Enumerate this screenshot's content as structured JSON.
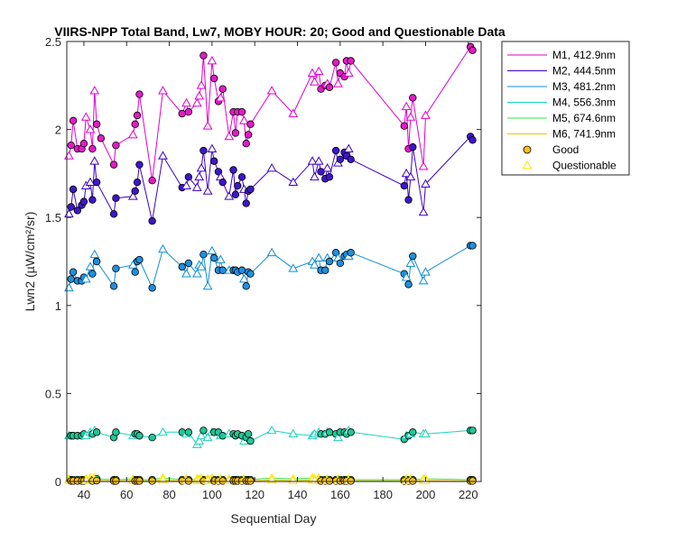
{
  "chart_data": {
    "type": "scatter",
    "title": "VIIRS-NPP Total Band, Lw7, MOBY HOUR: 20;  Good and Questionable Data",
    "xlabel": "Sequential Day",
    "ylabel": "Lwn2 (µW/cm²/sr)",
    "xlim": [
      32,
      226
    ],
    "ylim": [
      0,
      2.5
    ],
    "xticks": [
      40,
      60,
      80,
      100,
      120,
      140,
      160,
      180,
      200,
      220
    ],
    "yticks": [
      0,
      0.5,
      1,
      1.5,
      2,
      2.5
    ],
    "ytick_labels": [
      "0",
      "0.5",
      "1",
      "1.5",
      "2",
      "2.5"
    ],
    "grid": false,
    "legend_position": "outside-top-right",
    "marker_legend": [
      {
        "label": "Good",
        "marker": "circle",
        "fill": "#FFC20E",
        "edge": "#000000"
      },
      {
        "label": "Questionable",
        "marker": "triangle",
        "fill": "none",
        "edge": "#FFE600"
      }
    ],
    "series": [
      {
        "name": "M1, 412.9nm",
        "color": "#E000D0",
        "fill": "#E619C8",
        "x": [
          33,
          34,
          35,
          37,
          39,
          40,
          41,
          43,
          44,
          45,
          46,
          48,
          54,
          55,
          63,
          64,
          65,
          66,
          72,
          77,
          86,
          88,
          89,
          93,
          94,
          95,
          96,
          98,
          100,
          101,
          103,
          104,
          105,
          108,
          110,
          111,
          112,
          114,
          115,
          116,
          117,
          118,
          128,
          138,
          147,
          148,
          150,
          151,
          153,
          154,
          155,
          158,
          159,
          160,
          162,
          163,
          164,
          165,
          190,
          191,
          192,
          193,
          194,
          199,
          200,
          221,
          222
        ],
        "y": [
          1.85,
          1.91,
          2.05,
          1.89,
          1.89,
          1.92,
          2.07,
          2.0,
          1.89,
          2.22,
          2.03,
          1.95,
          1.8,
          1.91,
          1.97,
          2.03,
          2.08,
          2.2,
          1.71,
          2.22,
          2.09,
          2.15,
          2.1,
          2.15,
          2.19,
          2.25,
          2.42,
          2.02,
          2.39,
          2.29,
          2.16,
          2.18,
          2.23,
          1.96,
          2.1,
          1.98,
          2.1,
          2.1,
          2.05,
          1.92,
          1.97,
          2.03,
          2.22,
          2.09,
          2.32,
          2.27,
          2.33,
          2.23,
          2.25,
          2.26,
          2.24,
          2.38,
          2.26,
          2.32,
          2.3,
          2.39,
          2.32,
          2.39,
          2.02,
          2.13,
          1.89,
          2.07,
          2.18,
          1.79,
          2.08,
          2.47,
          2.45
        ],
        "q": [
          1,
          0,
          0,
          0,
          0,
          0,
          1,
          1,
          0,
          1,
          0,
          0,
          0,
          0,
          1,
          0,
          0,
          0,
          0,
          1,
          0,
          1,
          0,
          1,
          1,
          1,
          0,
          1,
          1,
          0,
          0,
          1,
          0,
          1,
          0,
          0,
          0,
          0,
          1,
          0,
          0,
          0,
          1,
          1,
          1,
          1,
          1,
          0,
          0,
          1,
          0,
          0,
          1,
          0,
          0,
          0,
          1,
          0,
          0,
          1,
          0,
          1,
          0,
          1,
          1,
          0,
          0
        ]
      },
      {
        "name": "M2, 444.5nm",
        "color": "#3D00C8",
        "fill": "#3E16CC",
        "x": [
          33,
          34,
          35,
          37,
          39,
          40,
          41,
          43,
          44,
          45,
          46,
          54,
          55,
          63,
          64,
          65,
          66,
          72,
          77,
          86,
          88,
          89,
          93,
          94,
          95,
          96,
          98,
          100,
          101,
          103,
          104,
          105,
          108,
          110,
          111,
          112,
          114,
          115,
          116,
          117,
          118,
          128,
          138,
          147,
          148,
          150,
          151,
          153,
          154,
          155,
          158,
          159,
          160,
          162,
          163,
          164,
          165,
          190,
          191,
          192,
          193,
          194,
          199,
          200,
          221,
          222
        ],
        "y": [
          1.52,
          1.56,
          1.66,
          1.54,
          1.57,
          1.59,
          1.68,
          1.7,
          1.6,
          1.82,
          1.7,
          1.52,
          1.61,
          1.62,
          1.65,
          1.7,
          1.8,
          1.48,
          1.85,
          1.67,
          1.68,
          1.73,
          1.67,
          1.73,
          1.78,
          1.88,
          1.65,
          1.89,
          1.82,
          1.76,
          1.73,
          1.7,
          1.62,
          1.77,
          1.63,
          1.68,
          1.73,
          1.66,
          1.58,
          1.65,
          1.66,
          1.78,
          1.7,
          1.82,
          1.73,
          1.82,
          1.76,
          1.72,
          1.78,
          1.73,
          1.88,
          1.81,
          1.83,
          1.87,
          1.85,
          1.89,
          1.83,
          1.68,
          1.75,
          1.6,
          1.73,
          1.9,
          1.53,
          1.69,
          1.96,
          1.94
        ],
        "q": [
          1,
          0,
          0,
          0,
          0,
          0,
          1,
          1,
          0,
          1,
          0,
          0,
          0,
          1,
          0,
          0,
          0,
          0,
          1,
          0,
          1,
          0,
          1,
          1,
          1,
          0,
          1,
          1,
          0,
          0,
          1,
          0,
          1,
          0,
          0,
          0,
          0,
          1,
          0,
          0,
          0,
          1,
          1,
          1,
          1,
          1,
          0,
          0,
          1,
          0,
          0,
          1,
          0,
          0,
          0,
          1,
          0,
          0,
          1,
          0,
          1,
          0,
          1,
          1,
          0,
          0
        ]
      },
      {
        "name": "M3, 481.2nm",
        "color": "#0F8FD6",
        "fill": "#1E90E0",
        "x": [
          33,
          34,
          35,
          37,
          39,
          40,
          41,
          43,
          44,
          45,
          46,
          54,
          55,
          63,
          64,
          65,
          66,
          72,
          77,
          86,
          88,
          89,
          93,
          94,
          95,
          96,
          98,
          100,
          101,
          103,
          104,
          105,
          108,
          110,
          111,
          112,
          114,
          115,
          116,
          117,
          118,
          128,
          138,
          147,
          148,
          150,
          151,
          153,
          154,
          155,
          158,
          159,
          160,
          162,
          163,
          164,
          165,
          190,
          191,
          192,
          193,
          194,
          199,
          200,
          221,
          222
        ],
        "y": [
          1.1,
          1.15,
          1.19,
          1.14,
          1.14,
          1.16,
          1.15,
          1.22,
          1.18,
          1.29,
          1.25,
          1.11,
          1.21,
          1.23,
          1.19,
          1.25,
          1.26,
          1.1,
          1.32,
          1.22,
          1.18,
          1.24,
          1.18,
          1.23,
          1.22,
          1.29,
          1.11,
          1.31,
          1.27,
          1.2,
          1.26,
          1.2,
          1.2,
          1.2,
          1.2,
          1.19,
          1.2,
          1.15,
          1.11,
          1.19,
          1.18,
          1.3,
          1.21,
          1.25,
          1.23,
          1.27,
          1.2,
          1.2,
          1.27,
          1.25,
          1.3,
          1.27,
          1.24,
          1.28,
          1.29,
          1.28,
          1.3,
          1.18,
          1.16,
          1.12,
          1.24,
          1.28,
          1.14,
          1.19,
          1.34,
          1.34
        ],
        "q": [
          1,
          0,
          0,
          0,
          0,
          0,
          1,
          1,
          0,
          1,
          0,
          0,
          0,
          1,
          0,
          0,
          0,
          0,
          1,
          0,
          1,
          0,
          1,
          1,
          1,
          0,
          1,
          1,
          0,
          0,
          1,
          0,
          1,
          0,
          0,
          0,
          0,
          1,
          0,
          0,
          0,
          1,
          1,
          1,
          1,
          1,
          0,
          0,
          1,
          0,
          0,
          1,
          0,
          0,
          0,
          1,
          0,
          0,
          1,
          0,
          1,
          0,
          1,
          1,
          0,
          0
        ]
      },
      {
        "name": "M4, 556.3nm",
        "color": "#19D2BE",
        "fill": "#1EC896",
        "x": [
          33,
          34,
          35,
          37,
          39,
          40,
          41,
          43,
          44,
          45,
          46,
          54,
          55,
          63,
          64,
          65,
          66,
          72,
          77,
          86,
          88,
          89,
          93,
          94,
          95,
          96,
          98,
          100,
          101,
          103,
          104,
          105,
          108,
          110,
          111,
          112,
          114,
          115,
          116,
          117,
          118,
          128,
          138,
          147,
          148,
          150,
          151,
          153,
          154,
          155,
          158,
          159,
          160,
          162,
          163,
          164,
          165,
          190,
          191,
          192,
          193,
          194,
          199,
          200,
          221,
          222
        ],
        "y": [
          0.26,
          0.26,
          0.26,
          0.26,
          0.26,
          0.27,
          0.26,
          0.28,
          0.27,
          0.29,
          0.28,
          0.25,
          0.28,
          0.26,
          0.27,
          0.27,
          0.26,
          0.25,
          0.28,
          0.28,
          0.27,
          0.28,
          0.21,
          0.23,
          0.26,
          0.29,
          0.25,
          0.28,
          0.28,
          0.28,
          0.26,
          0.26,
          0.27,
          0.27,
          0.26,
          0.27,
          0.26,
          0.23,
          0.25,
          0.27,
          0.23,
          0.29,
          0.27,
          0.26,
          0.27,
          0.28,
          0.27,
          0.27,
          0.28,
          0.28,
          0.27,
          0.25,
          0.28,
          0.28,
          0.27,
          0.29,
          0.28,
          0.24,
          0.26,
          0.26,
          0.27,
          0.28,
          0.27,
          0.27,
          0.29,
          0.29
        ],
        "q": [
          1,
          0,
          0,
          0,
          0,
          0,
          1,
          1,
          0,
          1,
          0,
          0,
          0,
          1,
          0,
          0,
          0,
          0,
          1,
          0,
          1,
          0,
          1,
          1,
          1,
          0,
          1,
          1,
          0,
          0,
          1,
          0,
          1,
          0,
          0,
          0,
          0,
          1,
          0,
          0,
          0,
          1,
          1,
          1,
          1,
          1,
          0,
          0,
          1,
          0,
          0,
          1,
          0,
          0,
          0,
          1,
          0,
          0,
          1,
          0,
          1,
          0,
          1,
          1,
          0,
          0
        ]
      },
      {
        "name": "M5, 674.6nm",
        "color": "#3CE63C",
        "fill": "#46DC46",
        "x": [
          33,
          34,
          35,
          37,
          39,
          40,
          41,
          43,
          44,
          45,
          46,
          54,
          55,
          63,
          64,
          65,
          66,
          72,
          77,
          86,
          88,
          89,
          93,
          94,
          95,
          96,
          98,
          100,
          101,
          103,
          104,
          105,
          108,
          110,
          111,
          112,
          114,
          115,
          116,
          117,
          118,
          128,
          138,
          147,
          148,
          150,
          151,
          153,
          154,
          155,
          158,
          159,
          160,
          162,
          163,
          164,
          165,
          190,
          191,
          192,
          193,
          194,
          199,
          200,
          221,
          222
        ],
        "y": [
          0.015,
          0.01,
          0.01,
          0.01,
          0.01,
          0.01,
          0.015,
          0.02,
          0.01,
          0.025,
          0.015,
          0.01,
          0.01,
          0.015,
          0.01,
          0.01,
          0.01,
          0.01,
          0.02,
          0.01,
          0.015,
          0.01,
          0.015,
          0.015,
          0.02,
          0.01,
          0.015,
          0.02,
          0.01,
          0.01,
          0.015,
          0.01,
          0.015,
          0.01,
          0.01,
          0.01,
          0.01,
          0.015,
          0.01,
          0.01,
          0.01,
          0.02,
          0.015,
          0.02,
          0.015,
          0.02,
          0.01,
          0.01,
          0.015,
          0.01,
          0.01,
          0.015,
          0.01,
          0.01,
          0.01,
          0.015,
          0.01,
          0.01,
          0.015,
          0.01,
          0.015,
          0.01,
          0.015,
          0.015,
          0.01,
          0.01
        ],
        "q": [
          1,
          0,
          0,
          0,
          0,
          0,
          1,
          1,
          0,
          1,
          0,
          0,
          0,
          1,
          0,
          0,
          0,
          0,
          1,
          0,
          1,
          0,
          1,
          1,
          1,
          0,
          1,
          1,
          0,
          0,
          1,
          0,
          1,
          0,
          0,
          0,
          0,
          1,
          0,
          0,
          0,
          1,
          1,
          1,
          1,
          1,
          0,
          0,
          1,
          0,
          0,
          1,
          0,
          0,
          0,
          1,
          0,
          0,
          1,
          0,
          1,
          0,
          1,
          1,
          0,
          0
        ]
      },
      {
        "name": "M6, 741.9nm",
        "color": "#E6C800",
        "fill": "#FFC20E",
        "x": [
          33,
          34,
          35,
          37,
          39,
          40,
          41,
          43,
          44,
          45,
          46,
          54,
          55,
          63,
          64,
          65,
          66,
          72,
          77,
          86,
          88,
          89,
          93,
          94,
          95,
          96,
          98,
          100,
          101,
          103,
          104,
          105,
          108,
          110,
          111,
          112,
          114,
          115,
          116,
          117,
          118,
          128,
          138,
          147,
          148,
          150,
          151,
          153,
          154,
          155,
          158,
          159,
          160,
          162,
          163,
          164,
          165,
          190,
          191,
          192,
          193,
          194,
          199,
          200,
          221,
          222
        ],
        "y": [
          0.005,
          0.003,
          0.003,
          0.003,
          0.003,
          0.003,
          0.005,
          0.008,
          0.003,
          0.01,
          0.005,
          0.003,
          0.003,
          0.005,
          0.003,
          0.003,
          0.003,
          0.003,
          0.008,
          0.003,
          0.005,
          0.003,
          0.005,
          0.005,
          0.008,
          0.003,
          0.005,
          0.008,
          0.003,
          0.003,
          0.005,
          0.003,
          0.005,
          0.003,
          0.003,
          0.003,
          0.003,
          0.005,
          0.003,
          0.003,
          0.003,
          0.008,
          0.005,
          0.008,
          0.005,
          0.008,
          0.003,
          0.003,
          0.005,
          0.003,
          0.003,
          0.005,
          0.003,
          0.003,
          0.003,
          0.005,
          0.003,
          0.003,
          0.005,
          0.003,
          0.005,
          0.003,
          0.005,
          0.005,
          0.003,
          0.003
        ],
        "q": [
          1,
          0,
          0,
          0,
          0,
          0,
          1,
          1,
          0,
          1,
          0,
          0,
          0,
          1,
          0,
          0,
          0,
          0,
          1,
          0,
          1,
          0,
          1,
          1,
          1,
          0,
          1,
          1,
          0,
          0,
          1,
          0,
          1,
          0,
          0,
          0,
          0,
          1,
          0,
          0,
          0,
          1,
          1,
          1,
          1,
          1,
          0,
          0,
          1,
          0,
          0,
          1,
          0,
          0,
          0,
          1,
          0,
          0,
          1,
          0,
          1,
          0,
          1,
          1,
          0,
          0
        ]
      }
    ]
  }
}
